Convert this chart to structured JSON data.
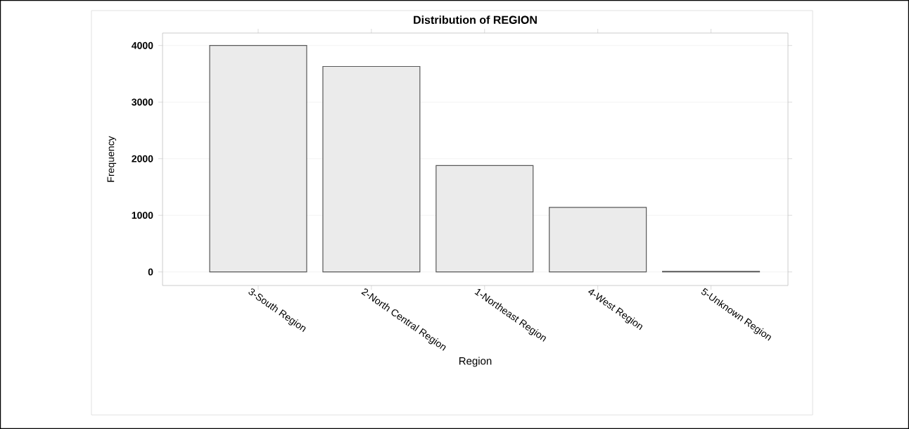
{
  "chart_data": {
    "type": "bar",
    "title": "Distribution of REGION",
    "xlabel": "Region",
    "ylabel": "Frequency",
    "categories": [
      "3-South Region",
      "2-North Central Region",
      "1-Northeast Region",
      "4-West Region",
      "5-Unknown Region"
    ],
    "values": [
      4000,
      3630,
      1880,
      1140,
      10
    ],
    "color": "#ebebeb",
    "ylim": [
      -240,
      4220
    ],
    "yticks": [
      0,
      1000,
      2000,
      3000,
      4000
    ],
    "grid": "y"
  }
}
